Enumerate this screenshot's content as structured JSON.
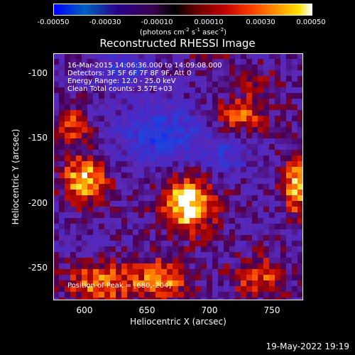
{
  "colorbar": {
    "ticks": [
      "-0.00050",
      "-0.00030",
      "-0.00010",
      "0.00010",
      "0.00030",
      "0.00050"
    ],
    "unit_main": "(photons cm",
    "unit_e1": "-2",
    "unit_s": " s",
    "unit_e2": "-1",
    "unit_asec": " asec",
    "unit_e3": "-2",
    "unit_close": ")"
  },
  "header": {
    "title": "Reconstructed RHESSI Image"
  },
  "annotations": {
    "time_range": "16-Mar-2015 14:06:36.000 to 14:09:08.000",
    "detectors": "Detectors: 3F 5F 6F 7F 8F 9F, Att 0",
    "energy": "Energy Range: 12.0 - 25.0 keV",
    "clean": "Clean    Total counts: 3.57E+03",
    "peak": "Position of Peak = [680,-204]"
  },
  "footer": {
    "datestamp": "19-May-2022 19:19"
  },
  "chart_data": {
    "type": "heatmap",
    "title": "Reconstructed RHESSI Image",
    "xlabel": "Heliocentric X (arcsec)",
    "ylabel": "Heliocentric Y (arcsec)",
    "xlim": [
      576,
      770
    ],
    "ylim": [
      -278,
      -87
    ],
    "xticks": [
      600,
      650,
      700,
      750
    ],
    "yticks": [
      -100,
      -150,
      -200,
      -250
    ],
    "color_range": [
      -0.0005,
      0.0005
    ],
    "sources": [
      {
        "x": 680,
        "y": -204,
        "amp": 1.0,
        "sx": 15,
        "sy": 15
      },
      {
        "x": 600,
        "y": -185,
        "amp": 0.85,
        "sx": 12,
        "sy": 13
      },
      {
        "x": 590,
        "y": -143,
        "amp": 0.55,
        "sx": 10,
        "sy": 9
      },
      {
        "x": 722,
        "y": -135,
        "amp": 0.55,
        "sx": 15,
        "sy": 10
      },
      {
        "x": 765,
        "y": -190,
        "amp": 0.75,
        "sx": 8,
        "sy": 16
      },
      {
        "x": 612,
        "y": -265,
        "amp": 0.65,
        "sx": 18,
        "sy": 12
      },
      {
        "x": 660,
        "y": -262,
        "amp": 0.65,
        "sx": 16,
        "sy": 12
      },
      {
        "x": 735,
        "y": -260,
        "amp": 0.55,
        "sx": 15,
        "sy": 11
      },
      {
        "x": 735,
        "y": -110,
        "amp": 0.35,
        "sx": 10,
        "sy": 8
      },
      {
        "x": 700,
        "y": -88,
        "amp": 0.3,
        "sx": 12,
        "sy": 6
      }
    ],
    "negative_regions": [
      {
        "x": 660,
        "y": -150,
        "amp": -0.65,
        "sx": 22,
        "sy": 16
      },
      {
        "x": 630,
        "y": -100,
        "amp": -0.45,
        "sx": 16,
        "sy": 10
      },
      {
        "x": 710,
        "y": -165,
        "amp": -0.35,
        "sx": 14,
        "sy": 12
      }
    ]
  }
}
